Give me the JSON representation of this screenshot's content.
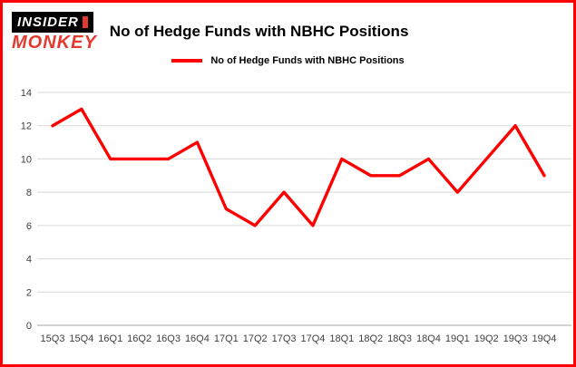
{
  "logo": {
    "line1": "INSIDER",
    "line2": "MONKEY"
  },
  "header": {
    "title": "No of Hedge Funds with NBHC Positions"
  },
  "colors": {
    "line": "#fe0000",
    "border": "#fe0000",
    "grid": "#d9d9d9",
    "axis": "#a6a6a6",
    "tick_text": "#404040",
    "logo_red": "#e23a2e"
  },
  "chart_data": {
    "type": "line",
    "title": "No of Hedge Funds with NBHC Positions",
    "legend": [
      "No of Hedge Funds with NBHC Positions"
    ],
    "legend_position": "top",
    "grid": "horizontal",
    "categories": [
      "15Q3",
      "15Q4",
      "16Q1",
      "16Q2",
      "16Q3",
      "16Q4",
      "17Q1",
      "17Q2",
      "17Q3",
      "17Q4",
      "18Q1",
      "18Q2",
      "18Q3",
      "18Q4",
      "19Q1",
      "19Q2",
      "19Q3",
      "19Q4"
    ],
    "series": [
      {
        "name": "No of Hedge Funds with NBHC Positions",
        "values": [
          12,
          13,
          10,
          10,
          10,
          11,
          7,
          6,
          8,
          6,
          10,
          9,
          9,
          10,
          8,
          10,
          12,
          9
        ]
      }
    ],
    "xlabel": "",
    "ylabel": "",
    "ylim": [
      0,
      14
    ],
    "yticks": [
      0,
      2,
      4,
      6,
      8,
      10,
      12,
      14
    ]
  }
}
